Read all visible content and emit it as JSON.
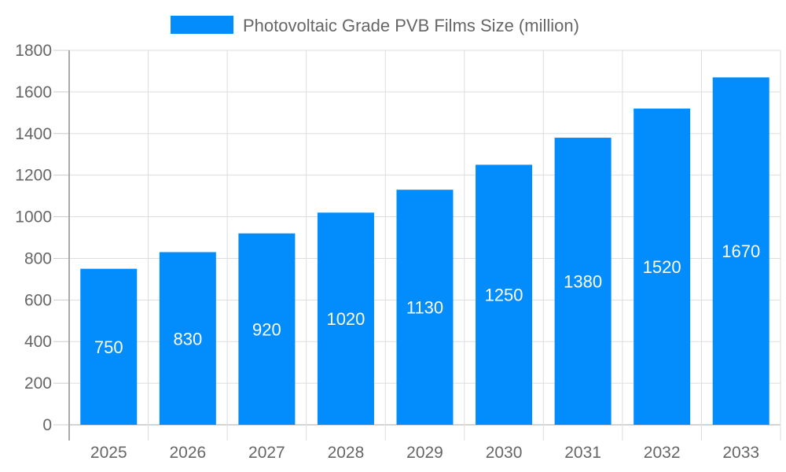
{
  "chart_data": {
    "type": "bar",
    "categories": [
      "2025",
      "2026",
      "2027",
      "2028",
      "2029",
      "2030",
      "2031",
      "2032",
      "2033"
    ],
    "series": [
      {
        "name": "Photovoltaic Grade PVB Films Size (million)",
        "values": [
          750,
          830,
          920,
          1020,
          1130,
          1250,
          1380,
          1520,
          1670
        ],
        "color": "#038cfc"
      }
    ],
    "ylim": [
      0,
      1800
    ],
    "yticks": [
      0,
      200,
      400,
      600,
      800,
      1000,
      1200,
      1400,
      1600,
      1800
    ],
    "grid": true,
    "legend": "top-center",
    "data_labels": true
  }
}
